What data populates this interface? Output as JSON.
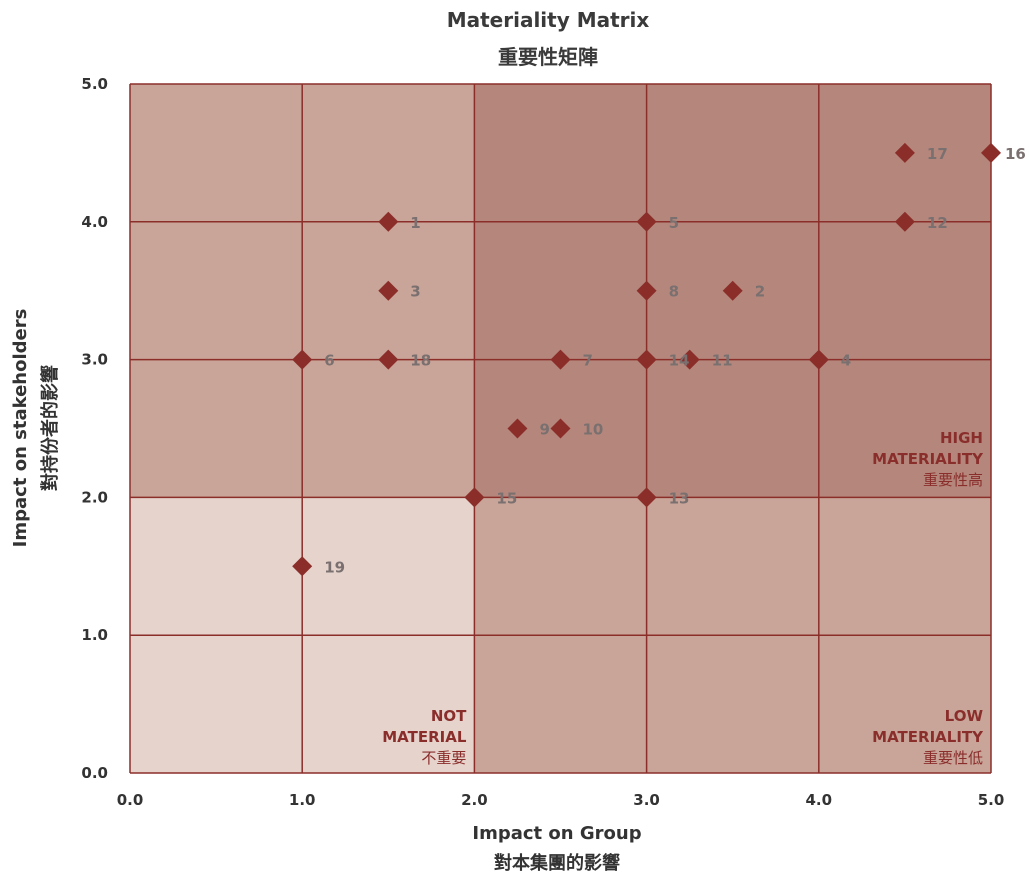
{
  "chart_data": {
    "type": "scatter",
    "title": "Materiality Matrix",
    "subtitle": "重要性矩陣",
    "xlabel": "Impact on Group",
    "xlabel_sub": "對本集團的影響",
    "ylabel": "Impact on stakeholders",
    "ylabel_sub": "對持份者的影響",
    "xlim": [
      0,
      5
    ],
    "ylim": [
      0,
      5
    ],
    "x_ticks": [
      "0.0",
      "1.0",
      "2.0",
      "3.0",
      "4.0",
      "5.0"
    ],
    "y_ticks": [
      "0.0",
      "1.0",
      "2.0",
      "3.0",
      "4.0",
      "5.0"
    ],
    "grid": true,
    "marker": "diamond",
    "marker_color": "#8b2e2a",
    "zone_colors": {
      "high": "#b5877c",
      "low": "#c9a498",
      "not": "#e6d3cc",
      "grid": "#8b2e2a"
    },
    "zones": [
      {
        "id": "high",
        "lines": [
          "HIGH",
          "MATERIALITY",
          "重要性高"
        ]
      },
      {
        "id": "low",
        "lines": [
          "LOW",
          "MATERIALITY",
          "重要性低"
        ]
      },
      {
        "id": "not",
        "lines": [
          "NOT",
          "MATERIAL",
          "不重要"
        ]
      }
    ],
    "points": [
      {
        "label": "1",
        "x": 1.5,
        "y": 4.0
      },
      {
        "label": "2",
        "x": 3.5,
        "y": 3.5
      },
      {
        "label": "3",
        "x": 1.5,
        "y": 3.5
      },
      {
        "label": "4",
        "x": 4.0,
        "y": 3.0
      },
      {
        "label": "5",
        "x": 3.0,
        "y": 4.0
      },
      {
        "label": "6",
        "x": 1.0,
        "y": 3.0
      },
      {
        "label": "7",
        "x": 2.5,
        "y": 3.0
      },
      {
        "label": "8",
        "x": 3.0,
        "y": 3.5
      },
      {
        "label": "9",
        "x": 2.25,
        "y": 2.5
      },
      {
        "label": "10",
        "x": 2.5,
        "y": 2.5
      },
      {
        "label": "11",
        "x": 3.25,
        "y": 3.0
      },
      {
        "label": "12",
        "x": 4.5,
        "y": 4.0
      },
      {
        "label": "13",
        "x": 3.0,
        "y": 2.0
      },
      {
        "label": "14",
        "x": 3.0,
        "y": 3.0
      },
      {
        "label": "15",
        "x": 2.0,
        "y": 2.0
      },
      {
        "label": "16",
        "x": 5.0,
        "y": 4.5
      },
      {
        "label": "17",
        "x": 4.5,
        "y": 4.5
      },
      {
        "label": "18",
        "x": 1.5,
        "y": 3.0
      },
      {
        "label": "19",
        "x": 1.0,
        "y": 1.5
      }
    ]
  }
}
